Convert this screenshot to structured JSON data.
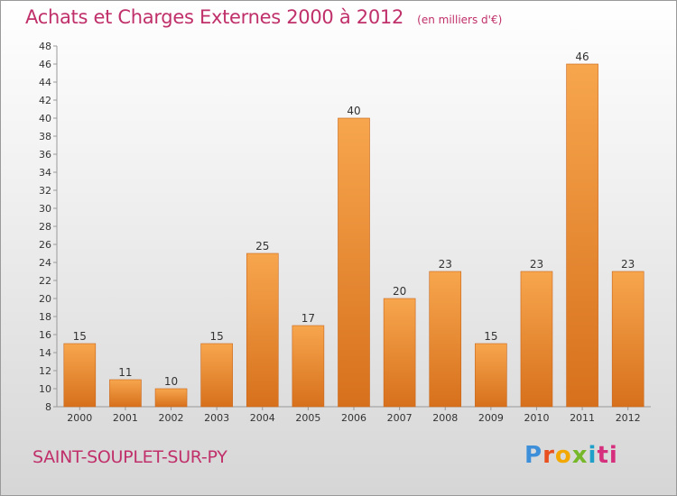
{
  "header": {
    "title": "Achats et Charges Externes 2000 à 2012",
    "unit": "(en milliers d'€)"
  },
  "commune": "SAINT-SOUPLET-SUR-PY",
  "logo": {
    "text": "Proxiti",
    "colors": [
      "#3d8fd9",
      "#e8501f",
      "#f2a800",
      "#76b82a",
      "#1fa0c8",
      "#d62f7d"
    ]
  },
  "colors": {
    "title": "#c0306a",
    "bar_light": "#f7a64e",
    "bar_dark": "#d7701c",
    "axis": "#999999"
  },
  "chart_data": {
    "type": "bar",
    "categories": [
      "2000",
      "2001",
      "2002",
      "2003",
      "2004",
      "2005",
      "2006",
      "2007",
      "2008",
      "2009",
      "2010",
      "2011",
      "2012"
    ],
    "values": [
      15,
      11,
      10,
      15,
      25,
      17,
      40,
      20,
      23,
      15,
      23,
      46,
      23
    ],
    "ylim": [
      8,
      48
    ],
    "yticks": [
      8,
      10,
      12,
      14,
      16,
      18,
      20,
      22,
      24,
      26,
      28,
      30,
      32,
      34,
      36,
      38,
      40,
      42,
      44,
      46,
      48
    ],
    "grid": false,
    "data_labels": true
  }
}
